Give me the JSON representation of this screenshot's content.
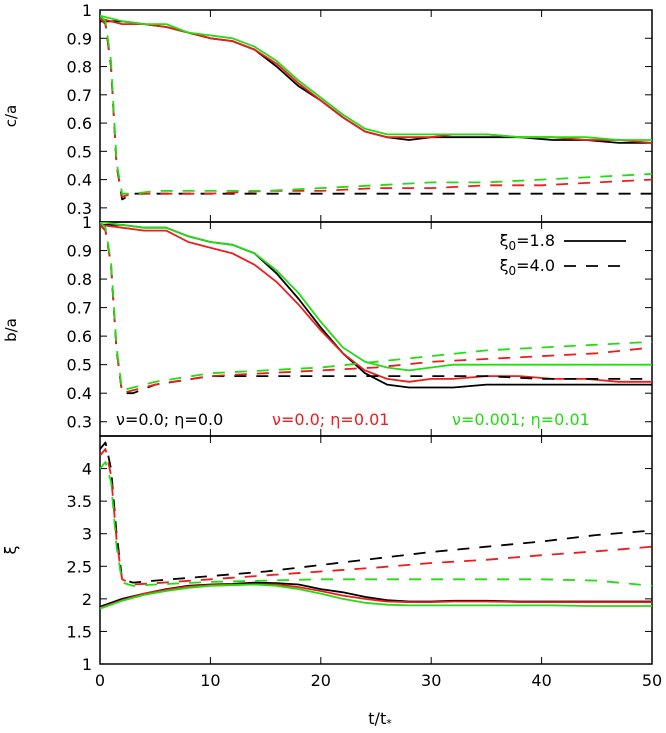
{
  "chart_data": [
    {
      "type": "line",
      "ylabel": "c/a",
      "ylim": [
        0.25,
        1.0
      ],
      "yticks": [
        "0.3",
        "0.4",
        "0.5",
        "0.6",
        "0.7",
        "0.8",
        "0.9",
        "1"
      ],
      "series": [
        {
          "name": "ν=0.0; η=0.0, ξ0=1.8",
          "color": "#000000",
          "dash": "solid",
          "x": [
            0,
            2,
            4,
            6,
            8,
            10,
            12,
            14,
            16,
            18,
            20,
            22,
            24,
            26,
            28,
            30,
            32,
            35,
            38,
            41,
            44,
            47,
            50
          ],
          "y": [
            0.96,
            0.96,
            0.95,
            0.94,
            0.92,
            0.9,
            0.89,
            0.86,
            0.8,
            0.73,
            0.68,
            0.62,
            0.57,
            0.55,
            0.54,
            0.55,
            0.55,
            0.55,
            0.55,
            0.54,
            0.54,
            0.53,
            0.53
          ]
        },
        {
          "name": "ν=0.0; η=0.01, ξ0=1.8",
          "color": "#ee1c1c",
          "dash": "solid",
          "x": [
            0,
            2,
            4,
            6,
            8,
            10,
            12,
            14,
            16,
            18,
            20,
            22,
            24,
            26,
            28,
            30,
            32,
            35,
            38,
            41,
            44,
            47,
            50
          ],
          "y": [
            0.97,
            0.95,
            0.95,
            0.94,
            0.92,
            0.9,
            0.89,
            0.86,
            0.81,
            0.74,
            0.68,
            0.62,
            0.57,
            0.55,
            0.55,
            0.55,
            0.56,
            0.56,
            0.55,
            0.55,
            0.54,
            0.54,
            0.53
          ]
        },
        {
          "name": "ν=0.001; η=0.01, ξ0=1.8",
          "color": "#22dd11",
          "dash": "solid",
          "x": [
            0,
            2,
            4,
            6,
            8,
            10,
            12,
            14,
            16,
            18,
            20,
            22,
            24,
            26,
            28,
            30,
            32,
            35,
            38,
            41,
            44,
            47,
            50
          ],
          "y": [
            0.98,
            0.96,
            0.95,
            0.95,
            0.92,
            0.91,
            0.9,
            0.87,
            0.82,
            0.75,
            0.69,
            0.63,
            0.58,
            0.56,
            0.56,
            0.56,
            0.56,
            0.56,
            0.55,
            0.55,
            0.55,
            0.54,
            0.54
          ]
        },
        {
          "name": "ν=0.0; η=0.0, ξ0=4.0",
          "color": "#000000",
          "dash": "dashed",
          "x": [
            0,
            0.5,
            1,
            1.5,
            2,
            3,
            5,
            10,
            15,
            20,
            25,
            30,
            35,
            40,
            45,
            50
          ],
          "y": [
            0.97,
            0.95,
            0.8,
            0.45,
            0.33,
            0.35,
            0.35,
            0.35,
            0.35,
            0.35,
            0.35,
            0.35,
            0.35,
            0.35,
            0.35,
            0.35
          ]
        },
        {
          "name": "ν=0.0; η=0.01, ξ0=4.0",
          "color": "#ee1c1c",
          "dash": "dashed",
          "x": [
            0,
            0.5,
            1,
            1.5,
            2,
            3,
            5,
            10,
            15,
            20,
            25,
            30,
            35,
            40,
            45,
            50
          ],
          "y": [
            0.97,
            0.95,
            0.8,
            0.45,
            0.34,
            0.35,
            0.35,
            0.35,
            0.36,
            0.36,
            0.37,
            0.37,
            0.38,
            0.38,
            0.39,
            0.4
          ]
        },
        {
          "name": "ν=0.001; η=0.01, ξ0=4.0",
          "color": "#22dd11",
          "dash": "dashed",
          "x": [
            0,
            0.5,
            1,
            1.5,
            2,
            3,
            5,
            10,
            15,
            20,
            25,
            30,
            35,
            40,
            45,
            50
          ],
          "y": [
            0.98,
            0.96,
            0.82,
            0.46,
            0.35,
            0.35,
            0.36,
            0.36,
            0.36,
            0.37,
            0.38,
            0.39,
            0.39,
            0.4,
            0.41,
            0.42
          ]
        }
      ]
    },
    {
      "type": "line",
      "ylabel": "b/a",
      "ylim": [
        0.25,
        1.0
      ],
      "yticks": [
        "0.3",
        "0.4",
        "0.5",
        "0.6",
        "0.7",
        "0.8",
        "0.9",
        "1"
      ],
      "legend": {
        "entries": [
          {
            "label_base": "ξ",
            "label_sub": "0",
            "label_rest": "=1.8",
            "dash": "solid"
          },
          {
            "label_base": "ξ",
            "label_sub": "0",
            "label_rest": "=4.0",
            "dash": "dashed"
          }
        ],
        "placement": "top-right"
      },
      "annotations": [
        {
          "text": "ν=0.0; η=0.0",
          "color": "#000000"
        },
        {
          "text": "ν=0.0; η=0.01",
          "color": "#ee1c1c"
        },
        {
          "text": "ν=0.001; η=0.01",
          "color": "#22dd11"
        }
      ],
      "series": [
        {
          "name": "ν=0.0; η=0.0, ξ0=1.8",
          "color": "#000000",
          "dash": "solid",
          "x": [
            0,
            2,
            4,
            6,
            8,
            10,
            12,
            14,
            16,
            18,
            20,
            22,
            24,
            26,
            28,
            30,
            32,
            35,
            38,
            41,
            44,
            47,
            50
          ],
          "y": [
            0.99,
            0.99,
            0.98,
            0.98,
            0.95,
            0.93,
            0.92,
            0.89,
            0.82,
            0.73,
            0.63,
            0.54,
            0.47,
            0.43,
            0.42,
            0.42,
            0.42,
            0.43,
            0.43,
            0.43,
            0.43,
            0.43,
            0.43
          ]
        },
        {
          "name": "ν=0.0; η=0.01, ξ0=1.8",
          "color": "#ee1c1c",
          "dash": "solid",
          "x": [
            0,
            2,
            4,
            6,
            8,
            10,
            12,
            14,
            16,
            18,
            20,
            22,
            24,
            26,
            28,
            30,
            32,
            35,
            38,
            41,
            44,
            47,
            50
          ],
          "y": [
            0.99,
            0.98,
            0.97,
            0.97,
            0.93,
            0.91,
            0.89,
            0.85,
            0.79,
            0.71,
            0.62,
            0.54,
            0.48,
            0.45,
            0.44,
            0.45,
            0.45,
            0.46,
            0.46,
            0.45,
            0.45,
            0.44,
            0.44
          ]
        },
        {
          "name": "ν=0.001; η=0.01, ξ0=1.8",
          "color": "#22dd11",
          "dash": "solid",
          "x": [
            0,
            2,
            4,
            6,
            8,
            10,
            12,
            14,
            16,
            18,
            20,
            22,
            24,
            26,
            28,
            30,
            32,
            35,
            38,
            41,
            44,
            47,
            50
          ],
          "y": [
            1.0,
            0.99,
            0.98,
            0.98,
            0.95,
            0.93,
            0.92,
            0.89,
            0.83,
            0.75,
            0.65,
            0.56,
            0.51,
            0.49,
            0.48,
            0.49,
            0.5,
            0.5,
            0.5,
            0.5,
            0.5,
            0.5,
            0.5
          ]
        },
        {
          "name": "ν=0.0; η=0.0, ξ0=4.0",
          "color": "#000000",
          "dash": "dashed",
          "x": [
            0,
            0.5,
            1,
            1.5,
            2,
            3,
            5,
            10,
            15,
            20,
            25,
            30,
            35,
            40,
            45,
            50
          ],
          "y": [
            0.99,
            0.97,
            0.85,
            0.55,
            0.4,
            0.4,
            0.43,
            0.46,
            0.46,
            0.46,
            0.46,
            0.46,
            0.46,
            0.45,
            0.45,
            0.45
          ]
        },
        {
          "name": "ν=0.0; η=0.01, ξ0=4.0",
          "color": "#ee1c1c",
          "dash": "dashed",
          "x": [
            0,
            0.5,
            1,
            1.5,
            2,
            3,
            5,
            10,
            15,
            20,
            25,
            30,
            35,
            40,
            45,
            50
          ],
          "y": [
            0.99,
            0.97,
            0.85,
            0.55,
            0.4,
            0.41,
            0.43,
            0.46,
            0.47,
            0.48,
            0.49,
            0.51,
            0.52,
            0.53,
            0.54,
            0.56
          ]
        },
        {
          "name": "ν=0.001; η=0.01, ξ0=4.0",
          "color": "#22dd11",
          "dash": "dashed",
          "x": [
            0,
            0.5,
            1,
            1.5,
            2,
            3,
            5,
            10,
            15,
            20,
            25,
            30,
            35,
            40,
            45,
            50
          ],
          "y": [
            1.0,
            0.98,
            0.86,
            0.56,
            0.41,
            0.42,
            0.44,
            0.47,
            0.48,
            0.49,
            0.51,
            0.53,
            0.55,
            0.56,
            0.57,
            0.58
          ]
        }
      ]
    },
    {
      "type": "line",
      "ylabel": "ξ",
      "xlabel_base": "t/t",
      "xlabel_sub": "*",
      "xlim": [
        0,
        50
      ],
      "xticks": [
        "0",
        "10",
        "20",
        "30",
        "40",
        "50"
      ],
      "ylim": [
        1.0,
        4.5
      ],
      "yticks": [
        "1",
        "1.5",
        "2",
        "2.5",
        "3",
        "3.5",
        "4"
      ],
      "series": [
        {
          "name": "ν=0.0; η=0.0, ξ0=1.8",
          "color": "#000000",
          "dash": "solid",
          "x": [
            0,
            2,
            4,
            6,
            8,
            10,
            12,
            14,
            16,
            18,
            20,
            22,
            24,
            26,
            28,
            30,
            32,
            35,
            38,
            41,
            44,
            47,
            50
          ],
          "y": [
            1.88,
            2.0,
            2.08,
            2.15,
            2.2,
            2.22,
            2.23,
            2.25,
            2.24,
            2.22,
            2.15,
            2.1,
            2.03,
            1.98,
            1.96,
            1.96,
            1.97,
            1.97,
            1.96,
            1.96,
            1.96,
            1.96,
            1.96
          ]
        },
        {
          "name": "ν=0.0; η=0.01, ξ0=1.8",
          "color": "#ee1c1c",
          "dash": "solid",
          "x": [
            0,
            2,
            4,
            6,
            8,
            10,
            12,
            14,
            16,
            18,
            20,
            22,
            24,
            26,
            28,
            30,
            32,
            35,
            38,
            41,
            44,
            47,
            50
          ],
          "y": [
            1.86,
            1.98,
            2.08,
            2.14,
            2.19,
            2.21,
            2.22,
            2.22,
            2.22,
            2.18,
            2.12,
            2.05,
            2.0,
            1.96,
            1.95,
            1.95,
            1.96,
            1.96,
            1.95,
            1.95,
            1.95,
            1.95,
            1.95
          ]
        },
        {
          "name": "ν=0.001; η=0.01, ξ0=1.8",
          "color": "#22dd11",
          "dash": "solid",
          "x": [
            0,
            2,
            4,
            6,
            8,
            10,
            12,
            14,
            16,
            18,
            20,
            22,
            24,
            26,
            28,
            30,
            32,
            35,
            38,
            41,
            44,
            47,
            50
          ],
          "y": [
            1.85,
            1.97,
            2.06,
            2.12,
            2.17,
            2.2,
            2.21,
            2.22,
            2.2,
            2.15,
            2.08,
            2.0,
            1.94,
            1.91,
            1.9,
            1.9,
            1.9,
            1.9,
            1.9,
            1.9,
            1.89,
            1.89,
            1.89
          ]
        },
        {
          "name": "ν=0.0; η=0.0, ξ0=4.0",
          "color": "#000000",
          "dash": "dashed",
          "x": [
            0,
            0.5,
            1,
            1.5,
            2,
            3,
            5,
            10,
            15,
            20,
            25,
            30,
            35,
            40,
            45,
            50
          ],
          "y": [
            4.3,
            4.4,
            4.0,
            3.0,
            2.3,
            2.25,
            2.28,
            2.35,
            2.42,
            2.52,
            2.62,
            2.72,
            2.8,
            2.88,
            2.98,
            3.05
          ]
        },
        {
          "name": "ν=0.0; η=0.01, ξ0=4.0",
          "color": "#ee1c1c",
          "dash": "dashed",
          "x": [
            0,
            0.5,
            1,
            1.5,
            2,
            3,
            5,
            10,
            15,
            20,
            25,
            30,
            35,
            40,
            45,
            50
          ],
          "y": [
            4.2,
            4.3,
            3.9,
            2.9,
            2.3,
            2.22,
            2.24,
            2.3,
            2.36,
            2.42,
            2.48,
            2.55,
            2.6,
            2.67,
            2.73,
            2.8
          ]
        },
        {
          "name": "ν=0.001; η=0.01, ξ0=4.0",
          "color": "#22dd11",
          "dash": "dashed",
          "x": [
            0,
            0.5,
            1,
            1.5,
            2,
            3,
            5,
            10,
            15,
            20,
            25,
            30,
            35,
            40,
            45,
            50
          ],
          "y": [
            4.0,
            4.1,
            3.8,
            2.8,
            2.25,
            2.2,
            2.22,
            2.26,
            2.28,
            2.3,
            2.3,
            2.3,
            2.3,
            2.3,
            2.28,
            2.2
          ]
        }
      ]
    }
  ]
}
